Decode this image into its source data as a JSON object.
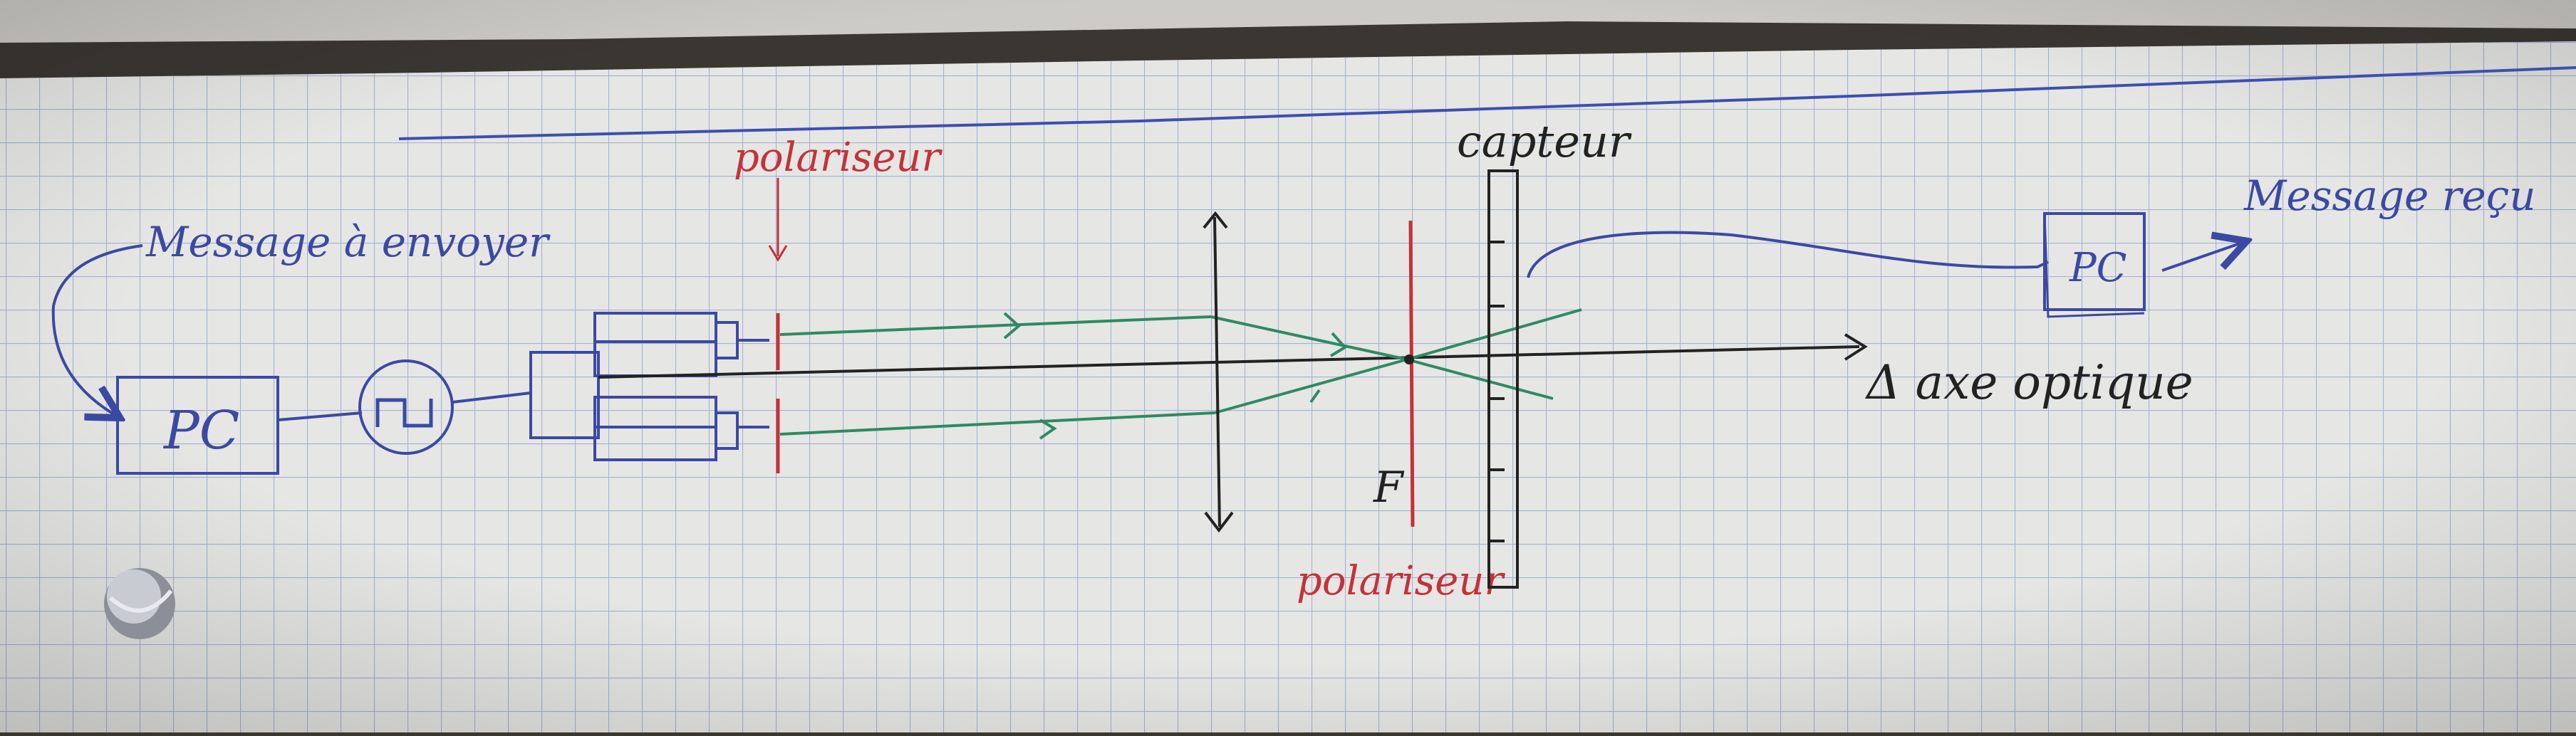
{
  "labels": {
    "message_to_send": "Message à envoyer",
    "pc_left": "PC",
    "polarizer_top": "polariseur",
    "sensor": "capteur",
    "message_received": "Message reçu",
    "pc_right": "PC",
    "optical_axis": "Δ axe optique",
    "focal_point": "F",
    "polarizer_bottom": "polariseur"
  },
  "colors": {
    "paper": "#e6e6e4",
    "grid": "#a3b2d2",
    "ink_blue": "#3c49a2",
    "ink_black": "#222222",
    "ink_green": "#2e8a64",
    "ink_red": "#c4323a",
    "top_margin_line": "#3d4fb0"
  },
  "icons": {
    "signal_generator": "square-wave-generator-icon",
    "lens": "converging-lens-icon"
  }
}
